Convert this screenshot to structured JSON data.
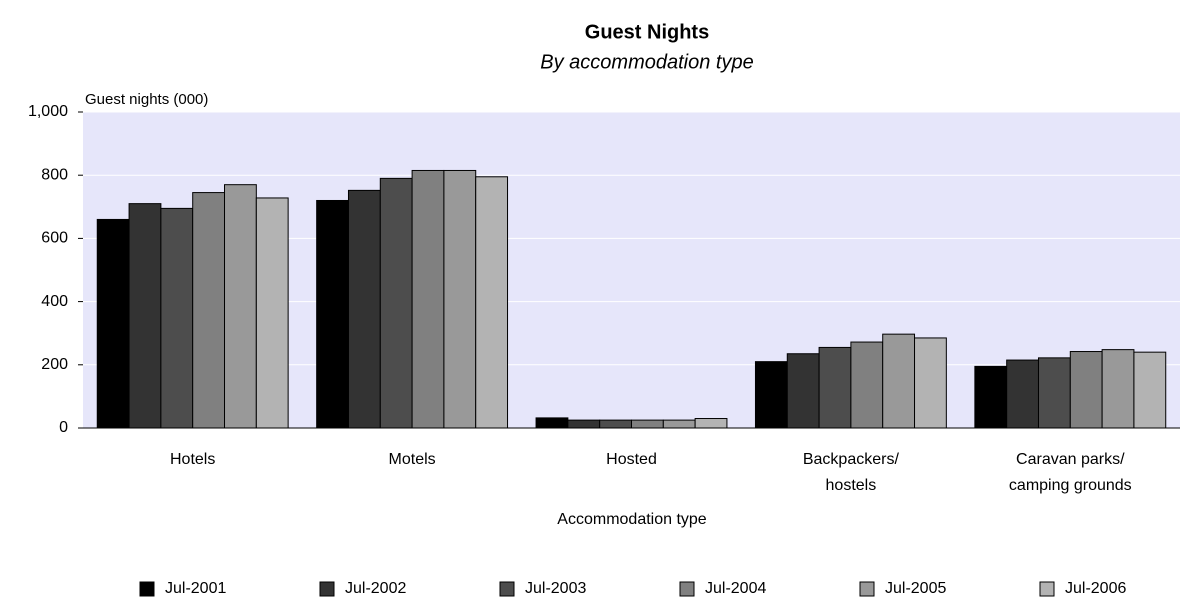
{
  "chart_data": {
    "type": "bar",
    "title": "Guest Nights",
    "subtitle": "By accommodation type",
    "y_label": "Guest nights (000)",
    "x_label": "Accommodation type",
    "categories": [
      "Hotels",
      "Motels",
      "Hosted",
      "Backpackers/\nhostels",
      "Caravan parks/\ncamping grounds"
    ],
    "series": [
      {
        "name": "Jul-2001",
        "color": "#000000",
        "values": [
          660,
          720,
          32,
          210,
          195
        ]
      },
      {
        "name": "Jul-2002",
        "color": "#333333",
        "values": [
          710,
          752,
          25,
          235,
          215
        ]
      },
      {
        "name": "Jul-2003",
        "color": "#4d4d4d",
        "values": [
          695,
          790,
          25,
          255,
          222
        ]
      },
      {
        "name": "Jul-2004",
        "color": "#808080",
        "values": [
          745,
          815,
          25,
          272,
          242
        ]
      },
      {
        "name": "Jul-2005",
        "color": "#999999",
        "values": [
          770,
          815,
          25,
          297,
          248
        ]
      },
      {
        "name": "Jul-2006",
        "color": "#b3b3b3",
        "values": [
          728,
          795,
          30,
          285,
          240
        ]
      }
    ],
    "ylim": [
      0,
      1000
    ],
    "yticks": [
      0,
      200,
      400,
      600,
      800,
      {
        "value": 1000,
        "label": "1,000"
      }
    ],
    "grid": true,
    "legend": "bottom",
    "background": "#e6e6fa"
  }
}
